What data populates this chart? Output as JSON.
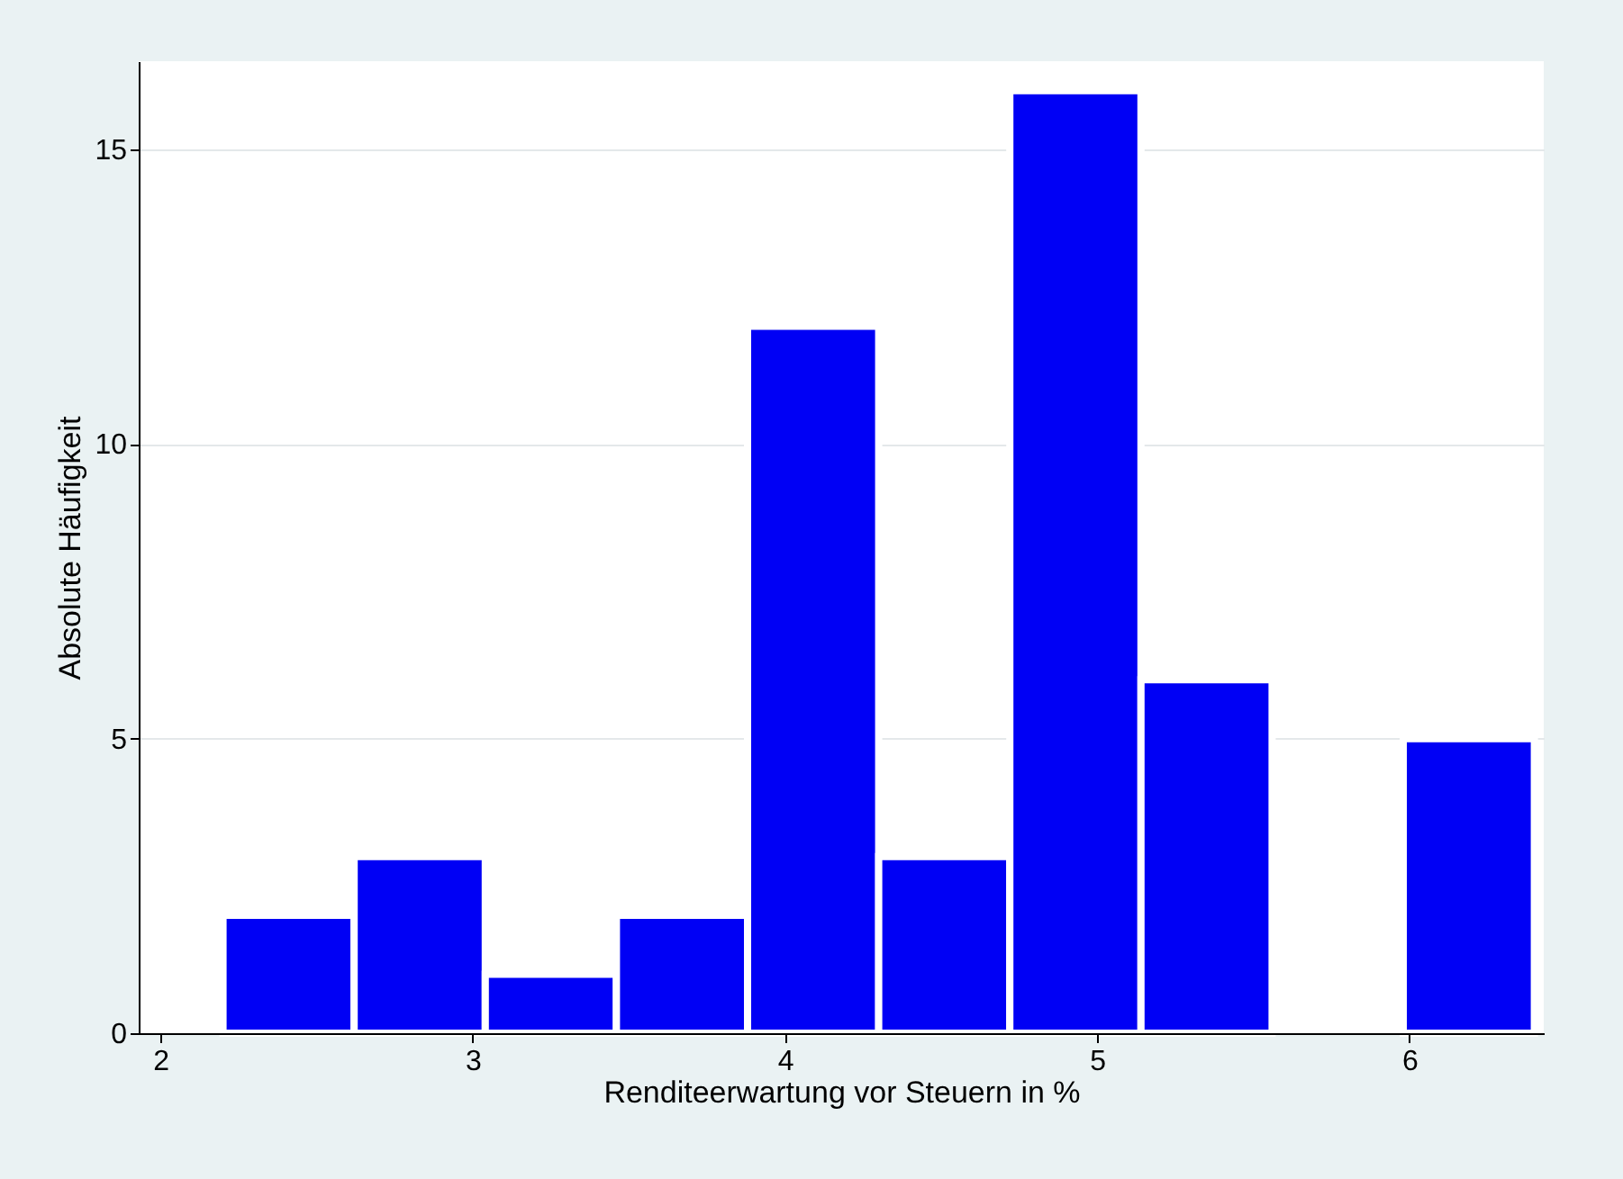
{
  "chart_data": {
    "type": "histogram",
    "xlabel": "Renditeerwartung vor Steuern in %",
    "ylabel": "Absolute Häufigkeit",
    "bins": [
      2.2,
      2.62,
      3.04,
      3.46,
      3.88,
      4.3,
      4.72,
      5.14,
      5.56,
      5.98,
      6.4
    ],
    "values": [
      2,
      3,
      1,
      2,
      12,
      3,
      16,
      6,
      0,
      5
    ],
    "color": "#0000f5",
    "xlim": [
      1.93,
      6.43
    ],
    "xticks": [
      2,
      3,
      4,
      5,
      6
    ],
    "ylim": [
      0,
      16.5
    ],
    "yticks": [
      0,
      5,
      10,
      15
    ],
    "grid": "y"
  }
}
